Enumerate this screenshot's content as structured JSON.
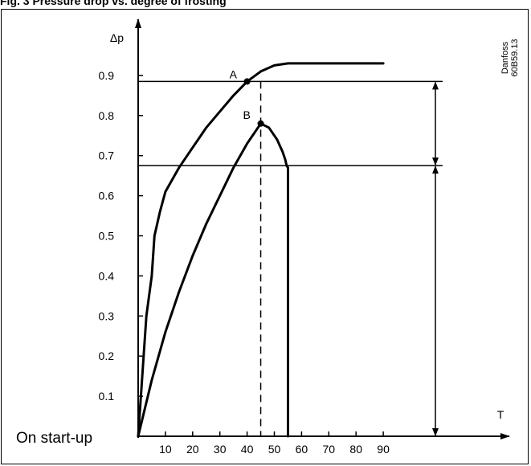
{
  "figure_title": "Fig. 3 Pressure drop vs. degree of frosting",
  "watermark": [
    "Danfoss",
    "60B59.13"
  ],
  "colors": {
    "line": "#000000",
    "background": "#ffffff"
  },
  "chart_data": {
    "type": "line",
    "title": "",
    "xlabel": "T",
    "ylabel": "Δp",
    "xlim": [
      0,
      90
    ],
    "ylim": [
      0,
      0.9
    ],
    "x_ticks": [
      10,
      20,
      30,
      40,
      50,
      60,
      70,
      80,
      90
    ],
    "y_ticks": [
      0.1,
      0.2,
      0.3,
      0.4,
      0.5,
      0.6,
      0.7,
      0.8,
      0.9
    ],
    "grid": false,
    "legend": "none",
    "series": [
      {
        "x": [
          0,
          3,
          5,
          6,
          8,
          10,
          15,
          20,
          25,
          30,
          35,
          40,
          45,
          50,
          55,
          60,
          70,
          80,
          90
        ],
        "y": [
          0,
          0.3,
          0.4,
          0.5,
          0.56,
          0.61,
          0.67,
          0.72,
          0.77,
          0.81,
          0.85,
          0.885,
          0.91,
          0.925,
          0.93,
          0.93,
          0.93,
          0.93,
          0.93
        ]
      },
      {
        "x": [
          0,
          5,
          10,
          15,
          20,
          25,
          30,
          35,
          40,
          45,
          48,
          51,
          53,
          54,
          54.5,
          55,
          55,
          55
        ],
        "y": [
          0,
          0.14,
          0.26,
          0.36,
          0.45,
          0.53,
          0.6,
          0.67,
          0.73,
          0.78,
          0.77,
          0.74,
          0.71,
          0.69,
          0.675,
          0.67,
          0.3,
          0
        ]
      }
    ],
    "points": [
      {
        "label": "A",
        "x": 40,
        "y": 0.885
      },
      {
        "label": "B",
        "x": 45,
        "y": 0.78
      }
    ],
    "reference_lines": {
      "horizontal": [
        0.885,
        0.675
      ],
      "vertical_dashed": 45
    },
    "annotations": [
      {
        "text": "On start-up"
      }
    ]
  }
}
